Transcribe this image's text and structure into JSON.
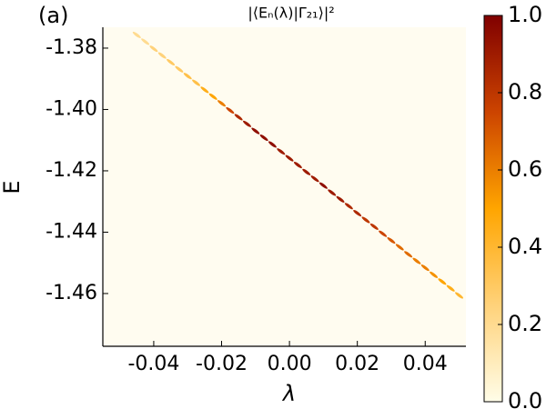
{
  "chart_data": {
    "type": "scatter",
    "panel_label": "(a)",
    "title": "|⟨Eₙ(λ)|Γ₂₁⟩|²",
    "xlabel": "λ",
    "ylabel": "E",
    "xlim": [
      -0.055,
      0.052
    ],
    "ylim": [
      -1.4772,
      -1.3732
    ],
    "xticks": [
      -0.04,
      -0.02,
      {
        "value": 0,
        "label": "0.00"
      },
      0.02,
      0.04
    ],
    "yticks": [
      {
        "value": -1.38,
        "label": "-1.38"
      },
      {
        "value": -1.4,
        "label": "-1.40"
      },
      -1.42,
      -1.44,
      -1.46
    ],
    "colormap": [
      "#fffde8",
      "#ffd27a",
      "#ffa500",
      "#cc4400",
      "#800000"
    ],
    "clim": [
      0,
      1
    ],
    "cticks": [
      {
        "value": 0,
        "label": "0.0"
      },
      0.2,
      0.4,
      0.6,
      0.8,
      {
        "value": 1,
        "label": "1.0"
      }
    ],
    "x": [
      -0.045,
      -0.0425,
      -0.04,
      -0.0375,
      -0.035,
      -0.0325,
      -0.03,
      -0.0275,
      -0.025,
      -0.0225,
      -0.02,
      -0.0175,
      -0.015,
      -0.0125,
      -0.01,
      -0.0075,
      -0.005,
      -0.0025,
      0,
      0.0025,
      0.005,
      0.0075,
      0.01,
      0.0125,
      0.015,
      0.0175,
      0.02,
      0.0225,
      0.025,
      0.0275,
      0.03,
      0.0325,
      0.035,
      0.0375,
      0.04,
      0.0425,
      0.045,
      0.0475,
      0.05
    ],
    "y": [
      -1.3757,
      -1.3779,
      -1.3802,
      -1.3824,
      -1.3846,
      -1.3869,
      -1.3891,
      -1.3913,
      -1.3936,
      -1.3958,
      -1.398,
      -1.4003,
      -1.4025,
      -1.4047,
      -1.407,
      -1.4092,
      -1.4114,
      -1.4137,
      -1.4159,
      -1.4181,
      -1.4204,
      -1.4226,
      -1.4248,
      -1.4271,
      -1.4293,
      -1.4315,
      -1.4338,
      -1.436,
      -1.4382,
      -1.4405,
      -1.4427,
      -1.4449,
      -1.4472,
      -1.4494,
      -1.4516,
      -1.4539,
      -1.4561,
      -1.4583,
      -1.4606
    ],
    "values": [
      0.2,
      0.2,
      0.25,
      0.25,
      0.3,
      0.3,
      0.35,
      0.35,
      0.45,
      0.5,
      0.6,
      0.75,
      0.85,
      0.9,
      0.95,
      0.95,
      0.95,
      0.9,
      0.9,
      0.9,
      0.9,
      0.9,
      0.95,
      0.9,
      0.9,
      0.85,
      0.85,
      0.8,
      0.8,
      0.75,
      0.7,
      0.65,
      0.65,
      0.6,
      0.6,
      0.55,
      0.5,
      0.45,
      0.4
    ]
  }
}
